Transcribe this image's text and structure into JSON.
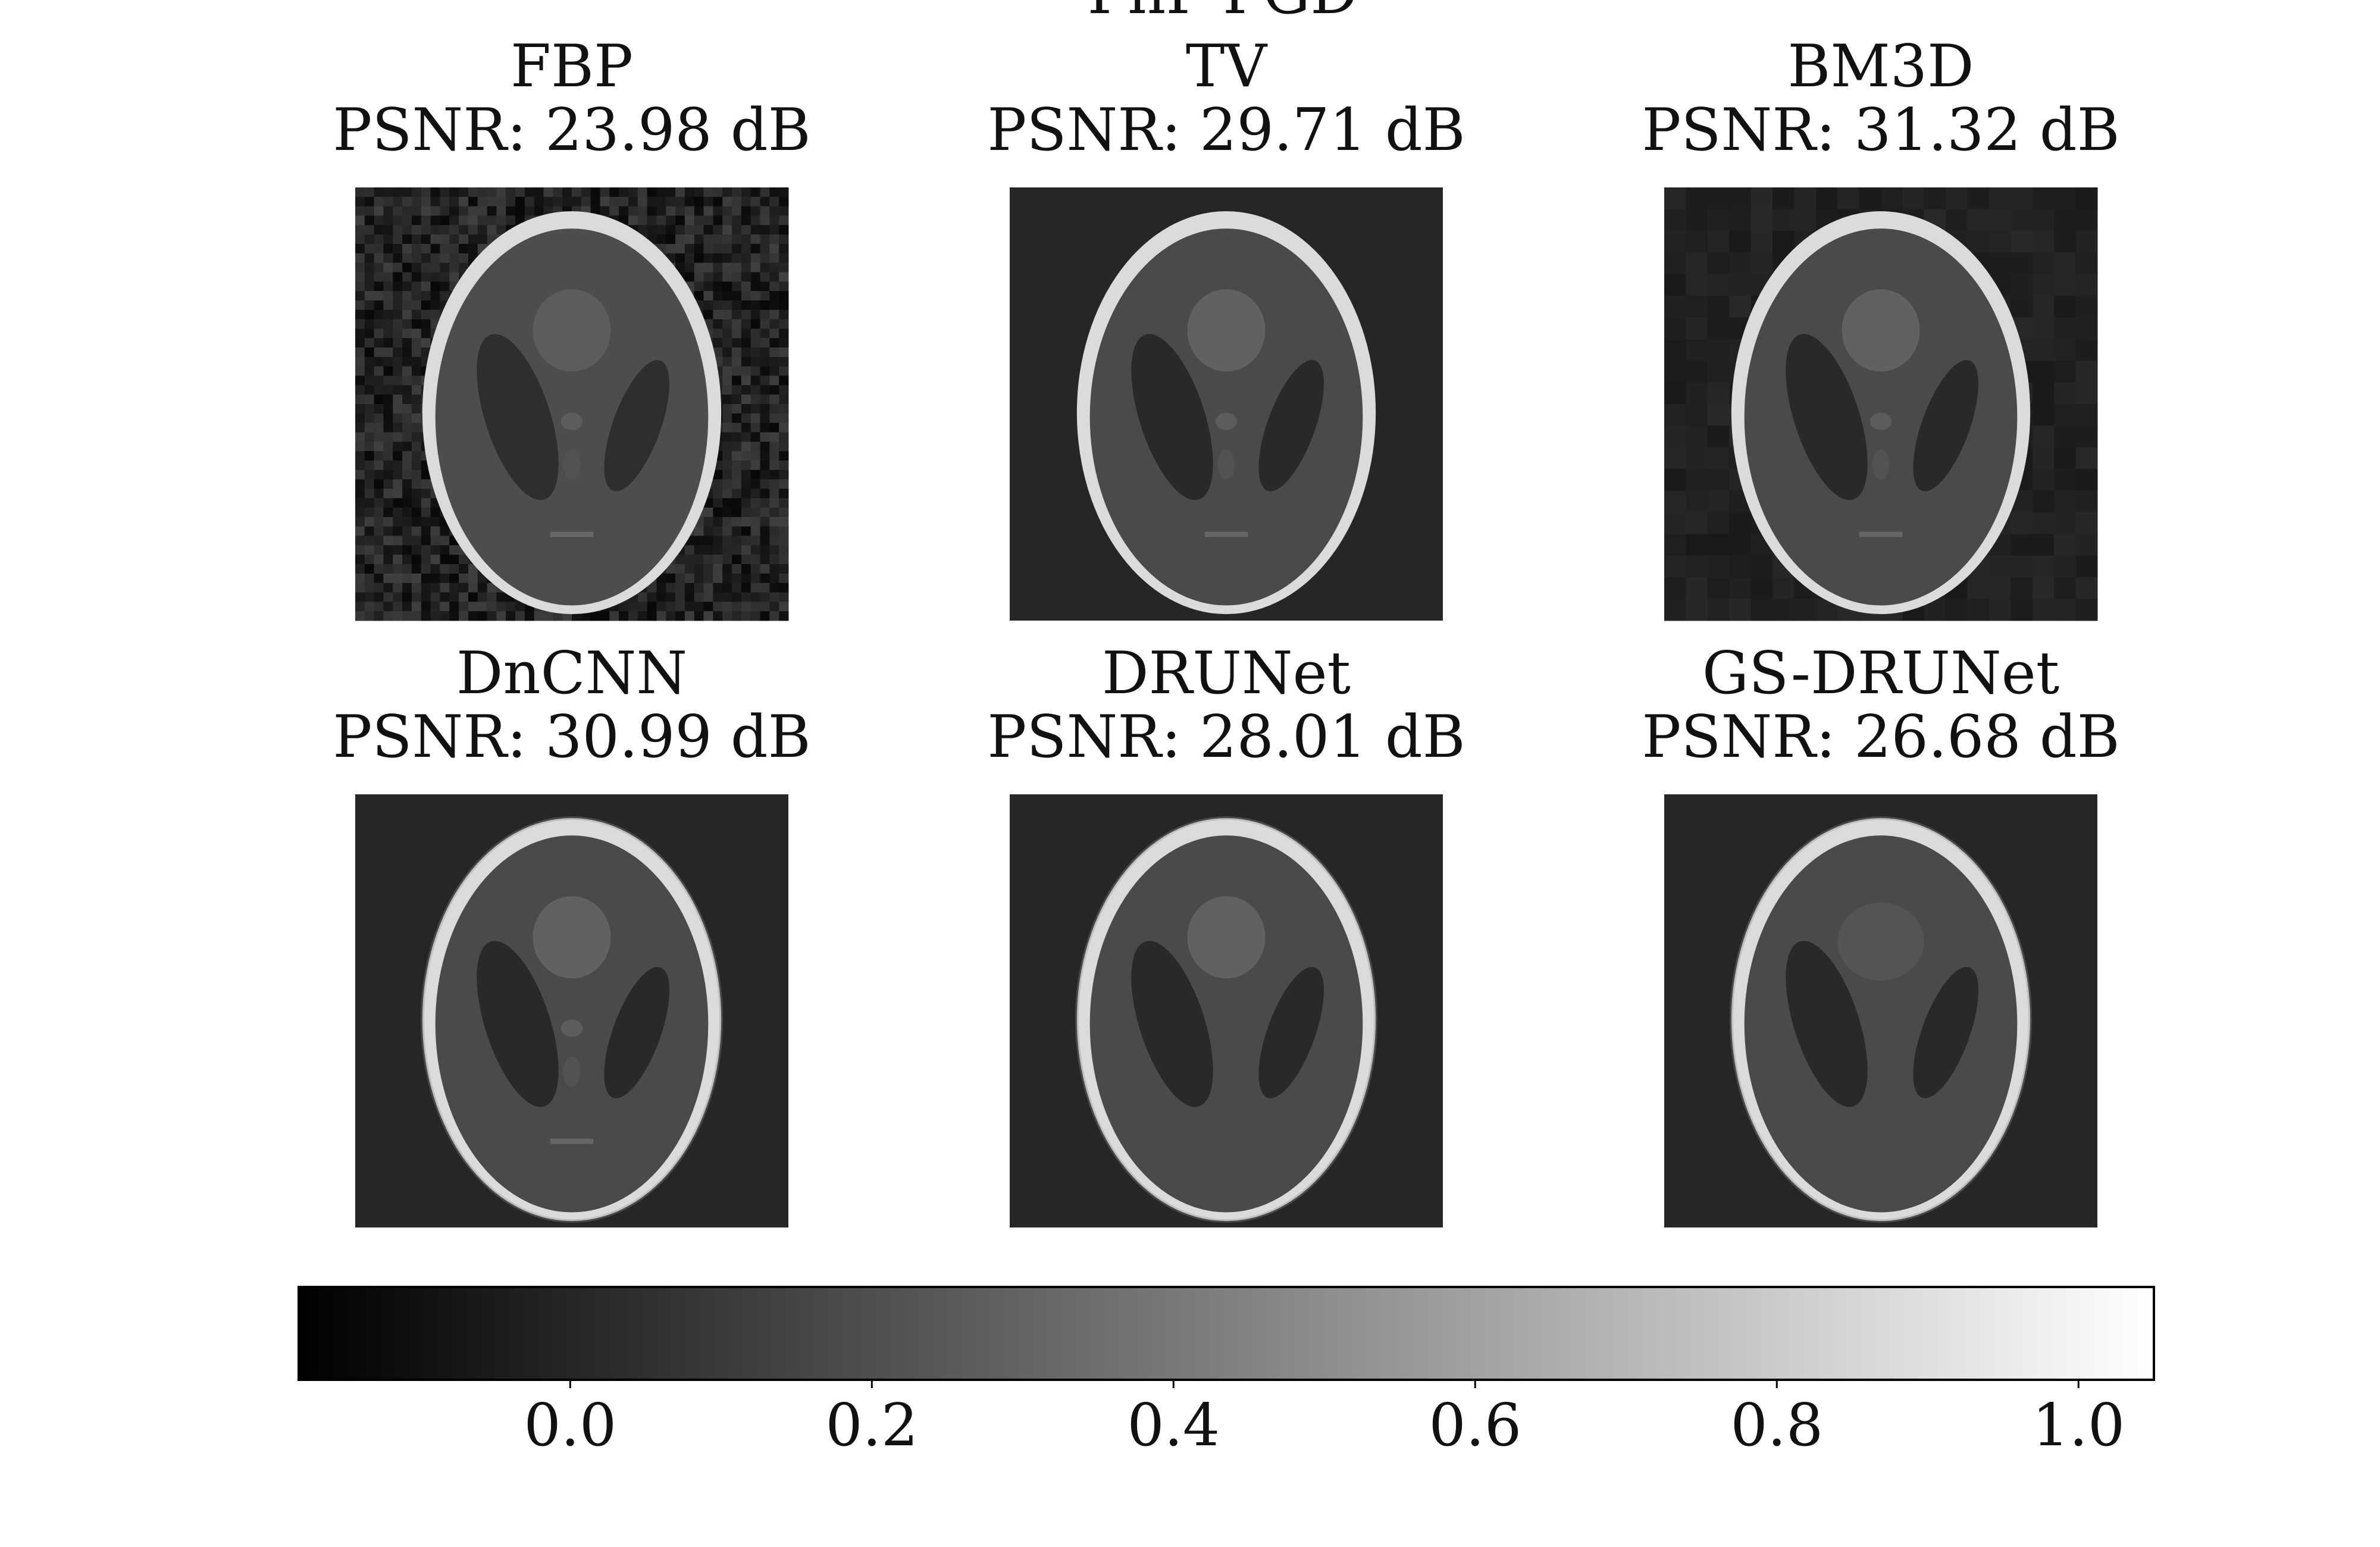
{
  "figure": {
    "suptitle": "PnP-PGD"
  },
  "panels": [
    {
      "method": "FBP",
      "psnr_label": "PSNR: 23.98 dB",
      "psnr_db": 23.98,
      "background": 0.14,
      "noise": "high"
    },
    {
      "method": "TV",
      "psnr_label": "PSNR: 29.71 dB",
      "psnr_db": 29.71,
      "background": 0.15,
      "noise": "none"
    },
    {
      "method": "BM3D",
      "psnr_label": "PSNR: 31.32 dB",
      "psnr_db": 31.32,
      "background": 0.13,
      "noise": "low"
    },
    {
      "method": "DnCNN",
      "psnr_label": "PSNR: 30.99 dB",
      "psnr_db": 30.99,
      "background": 0.15,
      "noise": "none"
    },
    {
      "method": "DRUNet",
      "psnr_label": "PSNR: 28.01 dB",
      "psnr_db": 28.01,
      "background": 0.15,
      "noise": "none"
    },
    {
      "method": "GS-DRUNet",
      "psnr_label": "PSNR: 26.68 dB",
      "psnr_db": 26.68,
      "background": 0.15,
      "noise": "none"
    }
  ],
  "chart_data": {
    "type": "heatmap",
    "title": "PnP-PGD",
    "subplots": [
      {
        "title": "FBP",
        "subtitle": "PSNR: 23.98 dB"
      },
      {
        "title": "TV",
        "subtitle": "PSNR: 29.71 dB"
      },
      {
        "title": "BM3D",
        "subtitle": "PSNR: 31.32 dB"
      },
      {
        "title": "DnCNN",
        "subtitle": "PSNR: 30.99 dB"
      },
      {
        "title": "DRUNet",
        "subtitle": "PSNR: 28.01 dB"
      },
      {
        "title": "GS-DRUNet",
        "subtitle": "PSNR: 26.68 dB"
      }
    ],
    "colormap": "gray",
    "colorbar": {
      "orientation": "horizontal",
      "range": [
        -0.18,
        1.05
      ],
      "ticks": [
        0.0,
        0.2,
        0.4,
        0.6,
        0.8,
        1.0
      ],
      "tick_labels": [
        "0.0",
        "0.2",
        "0.4",
        "0.6",
        "0.8",
        "1.0"
      ]
    }
  }
}
